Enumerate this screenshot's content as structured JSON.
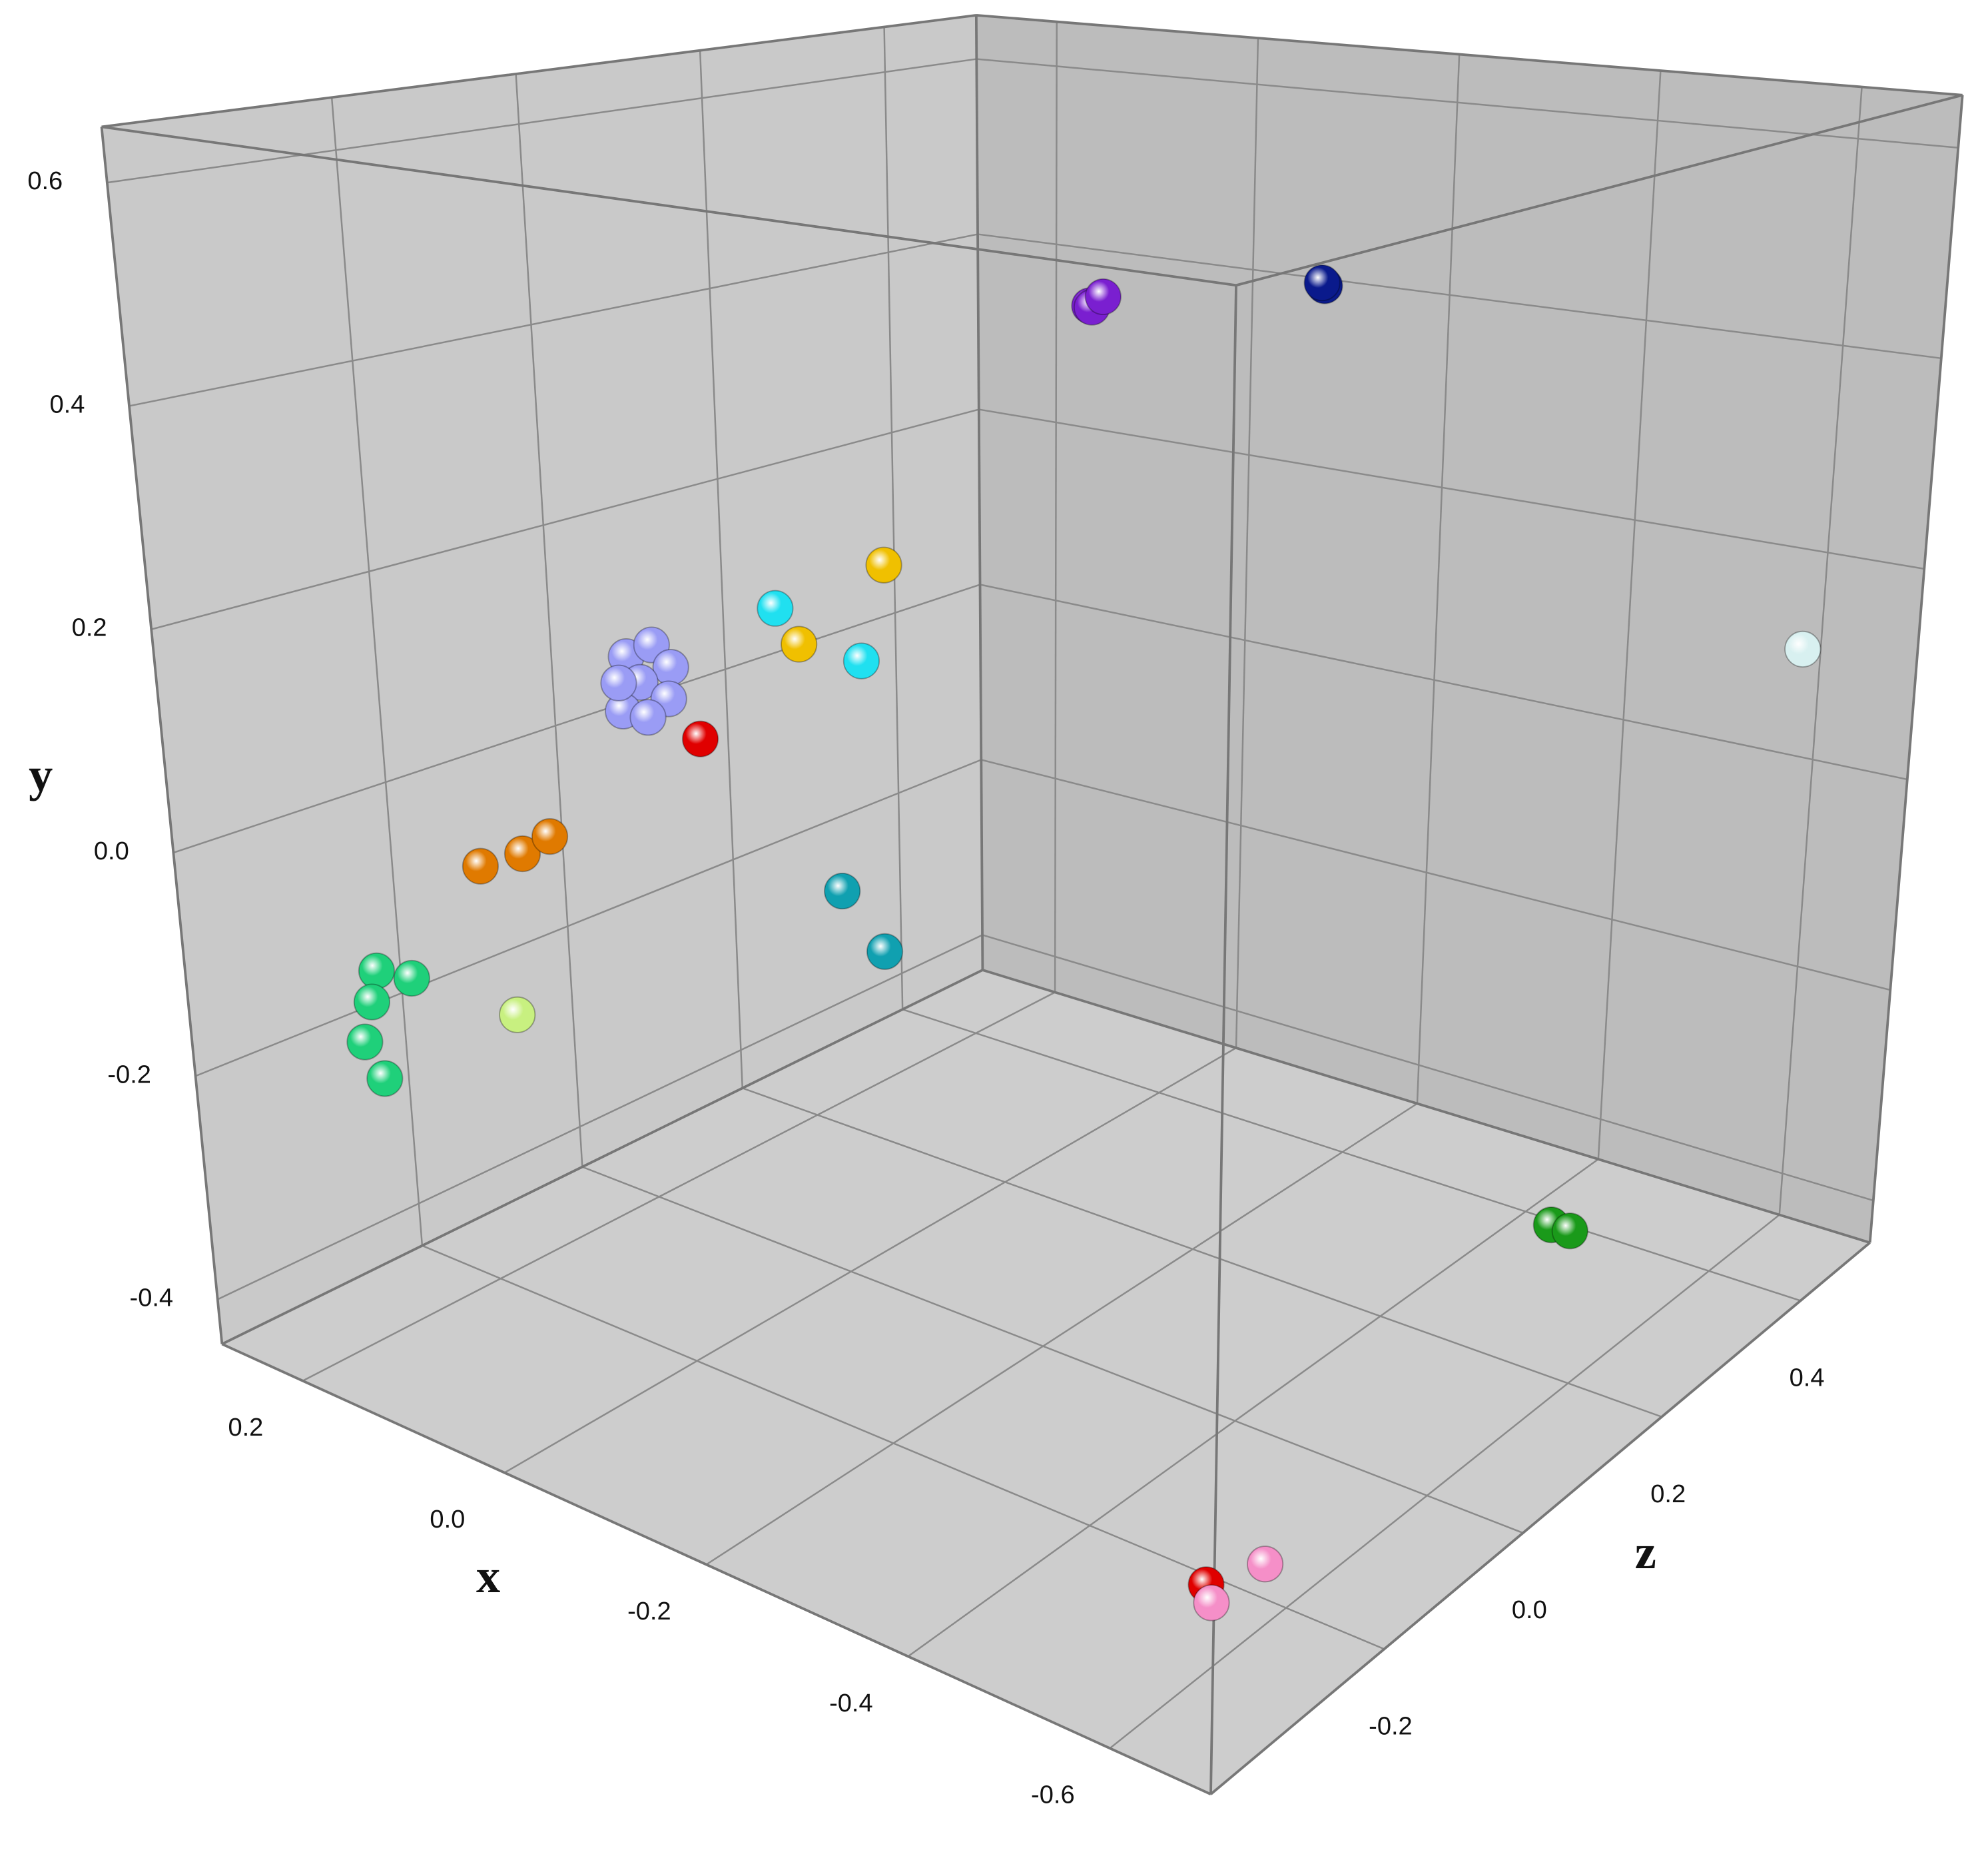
{
  "chart_data": {
    "type": "scatter3d",
    "x_label": "x",
    "y_label": "y",
    "z_label": "z",
    "xlim": [
      0.28,
      -0.7
    ],
    "ylim": [
      -0.44,
      0.65
    ],
    "zlim": [
      -0.45,
      0.5
    ],
    "xticks": [
      0.2,
      {
        "value": 0,
        "label": "0.0"
      },
      -0.2,
      -0.4,
      -0.6
    ],
    "yticks": [
      -0.4,
      -0.2,
      {
        "value": 0,
        "label": "0.0"
      },
      0.2,
      0.4,
      0.6
    ],
    "zticks": [
      -0.2,
      {
        "value": 0,
        "label": "0.0"
      },
      0.2,
      0.4
    ],
    "grid": true,
    "series": [
      {
        "color": "#7a1fd0",
        "x": [
          -0.225,
          -0.235,
          -0.23
        ],
        "y": [
          0.493,
          0.495,
          0.5
        ],
        "z": [
          0.03,
          0.02,
          0.04
        ]
      },
      {
        "color": "#0a1a8c",
        "x": [
          -0.445,
          -0.45
        ],
        "y": [
          0.54,
          0.545
        ],
        "z": [
          0.03,
          0.02
        ]
      },
      {
        "color": "#d8f0f0",
        "x": [
          -0.651
        ],
        "y": [
          0.149
        ],
        "z": [
          0.405
        ]
      },
      {
        "color": "#1a9a1a",
        "x": [
          -0.495,
          -0.515
        ],
        "y": [
          -0.381,
          -0.381
        ],
        "z": [
          0.31,
          0.31
        ]
      },
      {
        "color": "#e00000",
        "x": [
          -0.631
        ],
        "y": [
          -0.345
        ],
        "z": [
          -0.36
        ]
      },
      {
        "color": "#f58fc8",
        "x": [
          -0.633,
          -0.685
        ],
        "y": [
          -0.36,
          -0.315
        ],
        "z": [
          -0.355,
          -0.355
        ]
      },
      {
        "color": "#1fd07a",
        "x": [
          0.172,
          0.138,
          0.179,
          0.189,
          0.172
        ],
        "y": [
          -0.098,
          -0.094,
          -0.128,
          -0.167,
          -0.194
        ],
        "z": [
          -0.355,
          -0.355,
          -0.355,
          -0.355,
          -0.355
        ]
      },
      {
        "color": "#e07a00",
        "x": [
          0.064,
          0.023,
          -0.004
        ],
        "y": [
          0.026,
          0.048,
          0.07
        ],
        "z": [
          -0.355,
          -0.355,
          -0.355
        ]
      },
      {
        "color": "#c8f080",
        "x": [
          0.037
        ],
        "y": [
          -0.095
        ],
        "z": [
          -0.355
        ]
      },
      {
        "color": "#9a9cf5",
        "x": [
          -0.084,
          -0.108,
          -0.125,
          -0.096,
          -0.122,
          -0.079,
          -0.102,
          -0.076
        ],
        "y": [
          0.242,
          0.257,
          0.242,
          0.223,
          0.215,
          0.195,
          0.195,
          0.218
        ],
        "z": [
          -0.355,
          -0.355,
          -0.355,
          -0.355,
          -0.355,
          -0.355,
          -0.355,
          -0.355
        ]
      },
      {
        "color": "#e00000",
        "x": [
          -0.15
        ],
        "y": [
          0.188
        ],
        "z": [
          -0.355
        ]
      },
      {
        "color": "#20e0f0",
        "x": [
          -0.223,
          -0.301
        ],
        "y": [
          0.311,
          0.284
        ],
        "z": [
          -0.355,
          -0.355
        ]
      },
      {
        "color": "#f0c000",
        "x": [
          -0.323,
          -0.244
        ],
        "y": [
          0.365,
          0.286
        ],
        "z": [
          -0.355,
          -0.355
        ]
      },
      {
        "color": "#10a0b0",
        "x": [
          -0.279,
          -0.318
        ],
        "y": [
          0.094,
          0.055
        ],
        "z": [
          -0.355,
          -0.355
        ]
      }
    ]
  }
}
